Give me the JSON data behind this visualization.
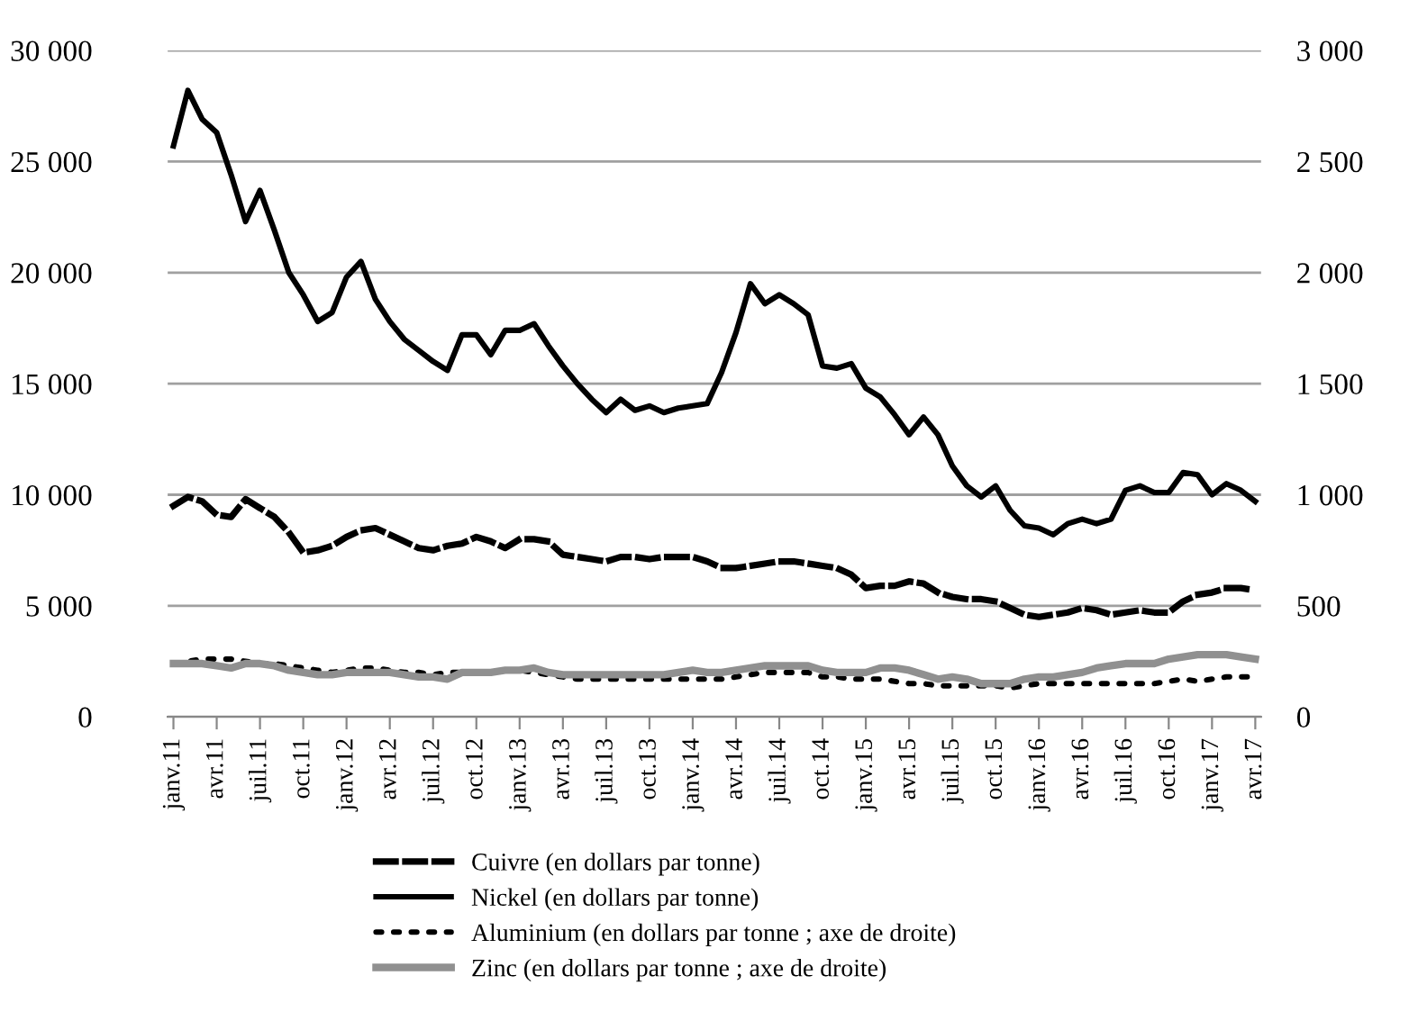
{
  "chart_data": {
    "type": "line",
    "categories": [
      "janv.11",
      null,
      null,
      "avr.11",
      null,
      null,
      "juil.11",
      null,
      null,
      "oct.11",
      null,
      null,
      "janv.12",
      null,
      null,
      "avr.12",
      null,
      null,
      "juil.12",
      null,
      null,
      "oct.12",
      null,
      null,
      "janv.13",
      null,
      null,
      "avr.13",
      null,
      null,
      "juil.13",
      null,
      null,
      "oct.13",
      null,
      null,
      "janv.14",
      null,
      null,
      "avr.14",
      null,
      null,
      "juil.14",
      null,
      null,
      "oct.14",
      null,
      null,
      "janv.15",
      null,
      null,
      "avr.15",
      null,
      null,
      "juil.15",
      null,
      null,
      "oct.15",
      null,
      null,
      "janv.16",
      null,
      null,
      "avr.16",
      null,
      null,
      "juil.16",
      null,
      null,
      "oct.16",
      null,
      null,
      "janv.17",
      null,
      null,
      "avr.17"
    ],
    "series": [
      {
        "name": "Cuivre (en dollars par tonne)",
        "color": "#000000",
        "line_style": "dashed",
        "values": [
          9500,
          9900,
          9700,
          9100,
          9000,
          9800,
          9400,
          9000,
          8300,
          7400,
          7500,
          7700,
          8100,
          8400,
          8500,
          8200,
          7900,
          7600,
          7500,
          7700,
          7800,
          8100,
          7900,
          7600,
          8000,
          8000,
          7900,
          7300,
          7200,
          7100,
          7000,
          7200,
          7200,
          7100,
          7200,
          7200,
          7200,
          7000,
          6700,
          6700,
          6800,
          6900,
          7000,
          7000,
          6900,
          6800,
          6700,
          6400,
          5800,
          5900,
          5900,
          6100,
          6000,
          5600,
          5400,
          5300,
          5300,
          5200,
          4900,
          4600,
          4500,
          4600,
          4700,
          4900,
          4800,
          4600,
          4700,
          4800,
          4700,
          4700,
          5200,
          5500,
          5600,
          5800,
          5800,
          5700
        ]
      },
      {
        "name": "Nickel (en dollars par tonne)",
        "color": "#000000",
        "line_style": "solid",
        "values": [
          25700,
          28200,
          26900,
          26300,
          24400,
          22300,
          23700,
          21900,
          20000,
          19000,
          17800,
          18200,
          19800,
          20500,
          18800,
          17800,
          17000,
          16500,
          16000,
          15600,
          17200,
          17200,
          16300,
          17400,
          17400,
          17700,
          16700,
          15800,
          15000,
          14300,
          13700,
          14300,
          13800,
          14000,
          13700,
          13900,
          14000,
          14100,
          15500,
          17300,
          19500,
          18600,
          19000,
          18600,
          18100,
          15800,
          15700,
          15900,
          14800,
          14400,
          13600,
          12700,
          13500,
          12700,
          11300,
          10400,
          9900,
          10400,
          9300,
          8600,
          8500,
          8200,
          8700,
          8900,
          8700,
          8900,
          10200,
          10400,
          10100,
          10100,
          11000,
          10900,
          10000,
          10500,
          10200,
          9700
        ]
      },
      {
        "name": "Aluminium (en dollars par tonne ; axe de droite)",
        "color": "#000000",
        "line_style": "dotted",
        "axis": "y2",
        "values": [
          240,
          250,
          260,
          260,
          260,
          250,
          240,
          240,
          230,
          220,
          210,
          200,
          210,
          220,
          220,
          210,
          200,
          200,
          190,
          200,
          200,
          200,
          200,
          210,
          210,
          200,
          190,
          180,
          170,
          170,
          170,
          170,
          170,
          170,
          170,
          170,
          170,
          170,
          170,
          180,
          190,
          200,
          200,
          200,
          200,
          180,
          180,
          170,
          170,
          170,
          160,
          150,
          150,
          140,
          140,
          140,
          140,
          140,
          130,
          140,
          150,
          150,
          150,
          150,
          150,
          150,
          150,
          150,
          150,
          160,
          170,
          160,
          170,
          180,
          180,
          180
        ]
      },
      {
        "name": "Zinc (en dollars par tonne ; axe de droite)",
        "color": "#909090",
        "line_style": "solid",
        "axis": "y2",
        "values": [
          240,
          240,
          240,
          230,
          220,
          240,
          240,
          230,
          210,
          200,
          190,
          190,
          200,
          200,
          200,
          200,
          190,
          180,
          180,
          170,
          200,
          200,
          200,
          210,
          210,
          220,
          200,
          190,
          190,
          190,
          190,
          190,
          190,
          190,
          190,
          200,
          210,
          200,
          200,
          210,
          220,
          230,
          230,
          230,
          230,
          210,
          200,
          200,
          200,
          220,
          220,
          210,
          190,
          170,
          180,
          170,
          150,
          150,
          150,
          170,
          180,
          180,
          190,
          200,
          220,
          230,
          240,
          240,
          240,
          260,
          270,
          280,
          280,
          280,
          270,
          260
        ]
      }
    ],
    "ylim": [
      0,
      30000
    ],
    "yticks": [
      {
        "value": 0,
        "label": "0"
      },
      {
        "value": 5000,
        "label": "5 000"
      },
      {
        "value": 10000,
        "label": "10 000"
      },
      {
        "value": 15000,
        "label": "15 000"
      },
      {
        "value": 20000,
        "label": "20 000"
      },
      {
        "value": 25000,
        "label": "25 000"
      },
      {
        "value": 30000,
        "label": "30 000"
      }
    ],
    "y2lim": [
      0,
      3000
    ],
    "y2ticks": [
      0,
      500,
      {
        "value": 1000,
        "label": "1 000"
      },
      {
        "value": 1500,
        "label": "1 500"
      },
      {
        "value": 2000,
        "label": "2 000"
      },
      {
        "value": 2500,
        "label": "2 500"
      },
      {
        "value": 3000,
        "label": "3 000"
      }
    ],
    "grid": "y",
    "legend": "bottom"
  }
}
